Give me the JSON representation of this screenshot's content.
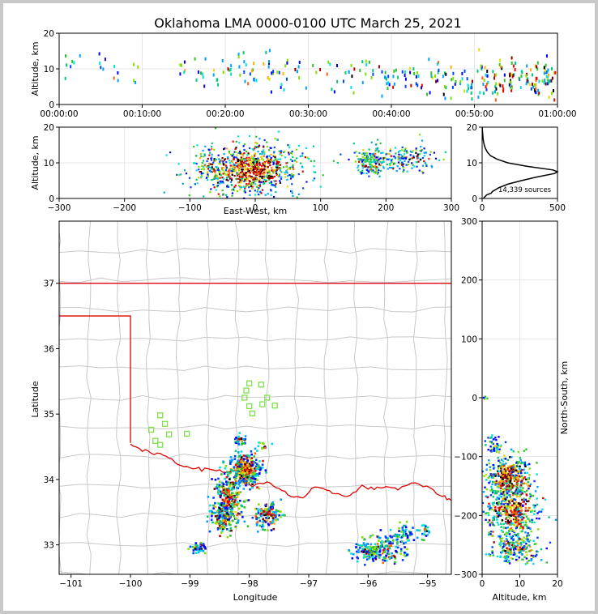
{
  "chart_data": [
    {
      "id": "time_height",
      "type": "scatter",
      "title": "Oklahoma LMA 0000-0100 UTC March 25, 2021",
      "ylabel": "Altitude, km",
      "xlim": [
        "00:00:00",
        "01:00:00"
      ],
      "ylim": [
        0,
        20
      ],
      "xticks": [
        "00:00:00",
        "00:10:00",
        "00:20:00",
        "00:30:00",
        "00:40:00",
        "00:50:00",
        "01:00:00"
      ],
      "yticks": [
        "0",
        "10",
        "20"
      ],
      "grid": true,
      "activity_minutes": [
        {
          "t": 0.5,
          "alt": 10,
          "n": 3
        },
        {
          "t": 2,
          "alt": 11,
          "n": 4
        },
        {
          "t": 5,
          "alt": 11,
          "n": 5
        },
        {
          "t": 7,
          "alt": 10,
          "n": 4
        },
        {
          "t": 9,
          "alt": 11,
          "n": 4
        },
        {
          "t": 15,
          "alt": 10,
          "n": 6
        },
        {
          "t": 17,
          "alt": 9,
          "n": 8
        },
        {
          "t": 19,
          "alt": 9,
          "n": 7
        },
        {
          "t": 21,
          "alt": 10,
          "n": 9
        },
        {
          "t": 23,
          "alt": 9,
          "n": 14
        },
        {
          "t": 25,
          "alt": 9,
          "n": 12
        },
        {
          "t": 27,
          "alt": 8,
          "n": 10
        },
        {
          "t": 29,
          "alt": 9,
          "n": 6
        },
        {
          "t": 31,
          "alt": 10,
          "n": 3
        },
        {
          "t": 33,
          "alt": 8,
          "n": 7
        },
        {
          "t": 35,
          "alt": 8,
          "n": 9
        },
        {
          "t": 37,
          "alt": 9,
          "n": 10
        },
        {
          "t": 39,
          "alt": 8,
          "n": 12
        },
        {
          "t": 41,
          "alt": 8,
          "n": 11
        },
        {
          "t": 43,
          "alt": 8,
          "n": 12
        },
        {
          "t": 45,
          "alt": 8,
          "n": 13
        },
        {
          "t": 47,
          "alt": 7,
          "n": 15
        },
        {
          "t": 49,
          "alt": 7,
          "n": 17
        },
        {
          "t": 51,
          "alt": 7,
          "n": 20
        },
        {
          "t": 53,
          "alt": 7,
          "n": 22
        },
        {
          "t": 55,
          "alt": 7,
          "n": 26
        },
        {
          "t": 57,
          "alt": 7,
          "n": 30
        },
        {
          "t": 59,
          "alt": 7,
          "n": 30
        }
      ]
    },
    {
      "id": "east_west_altitude",
      "type": "scatter",
      "xlabel": "East-West, km",
      "ylabel": "Altitude, km",
      "xlim": [
        -300,
        300
      ],
      "ylim": [
        0,
        20
      ],
      "xticks": [
        "−300",
        "−200",
        "−100",
        "0",
        "100",
        "200",
        "300"
      ],
      "yticks": [
        "0",
        "10",
        "20"
      ],
      "grid": true,
      "clusters": [
        {
          "x": -10,
          "y": 8,
          "sx": 40,
          "sy": 3.5,
          "n": 900,
          "hot": 1.0
        },
        {
          "x": 175,
          "y": 10.5,
          "sx": 12,
          "sy": 2,
          "n": 160,
          "hot": 0.4
        },
        {
          "x": 230,
          "y": 11,
          "sx": 25,
          "sy": 1.8,
          "n": 160,
          "hot": 0.4
        }
      ]
    },
    {
      "id": "altitude_histogram",
      "type": "line",
      "xlim": [
        0,
        500
      ],
      "ylim": [
        0,
        20
      ],
      "xticks": [
        "0",
        "500"
      ],
      "yticks": [
        "0",
        "10",
        "20"
      ],
      "annotation": "14,339 sources",
      "profile": [
        {
          "alt": 0,
          "count": 8
        },
        {
          "alt": 1,
          "count": 30
        },
        {
          "alt": 1.5,
          "count": 60
        },
        {
          "alt": 2,
          "count": 70
        },
        {
          "alt": 3,
          "count": 110
        },
        {
          "alt": 4,
          "count": 170
        },
        {
          "alt": 5,
          "count": 260
        },
        {
          "alt": 6,
          "count": 360
        },
        {
          "alt": 7,
          "count": 480
        },
        {
          "alt": 7.5,
          "count": 515
        },
        {
          "alt": 8,
          "count": 470
        },
        {
          "alt": 9,
          "count": 300
        },
        {
          "alt": 10,
          "count": 170
        },
        {
          "alt": 11,
          "count": 100
        },
        {
          "alt": 12,
          "count": 55
        },
        {
          "alt": 13,
          "count": 35
        },
        {
          "alt": 14,
          "count": 22
        },
        {
          "alt": 15,
          "count": 14
        },
        {
          "alt": 16,
          "count": 9
        },
        {
          "alt": 17,
          "count": 6
        },
        {
          "alt": 18,
          "count": 4
        },
        {
          "alt": 19,
          "count": 2
        },
        {
          "alt": 20,
          "count": 1
        }
      ]
    },
    {
      "id": "plan_view",
      "type": "scatter",
      "xlabel": "Longitude",
      "ylabel": "Latitude",
      "xlim": [
        -101.2,
        -94.6
      ],
      "ylim": [
        32.55,
        37.95
      ],
      "xticks": [
        "−101",
        "−100",
        "−99",
        "−98",
        "−97",
        "−96",
        "−95"
      ],
      "yticks": [
        "33",
        "34",
        "35",
        "36",
        "37"
      ],
      "clusters": [
        {
          "x": -98.05,
          "y": 34.15,
          "sx": 0.12,
          "sy": 0.12,
          "n": 320,
          "hot": 1.0
        },
        {
          "x": -98.35,
          "y": 33.7,
          "sx": 0.12,
          "sy": 0.2,
          "n": 260,
          "hot": 0.8
        },
        {
          "x": -98.45,
          "y": 33.4,
          "sx": 0.1,
          "sy": 0.12,
          "n": 110,
          "hot": 0.5
        },
        {
          "x": -97.7,
          "y": 33.45,
          "sx": 0.12,
          "sy": 0.1,
          "n": 130,
          "hot": 0.7
        },
        {
          "x": -98.15,
          "y": 34.6,
          "sx": 0.05,
          "sy": 0.05,
          "n": 30,
          "hot": 0.6
        },
        {
          "x": -97.75,
          "y": 34.52,
          "sx": 0.05,
          "sy": 0.04,
          "n": 14,
          "hot": 0.3
        },
        {
          "x": -98.85,
          "y": 32.95,
          "sx": 0.08,
          "sy": 0.04,
          "n": 40,
          "hot": 0.3
        },
        {
          "x": -96.0,
          "y": 32.9,
          "sx": 0.15,
          "sy": 0.08,
          "n": 110,
          "hot": 0.3
        },
        {
          "x": -95.65,
          "y": 32.95,
          "sx": 0.15,
          "sy": 0.12,
          "n": 120,
          "hot": 0.3
        },
        {
          "x": -95.4,
          "y": 33.15,
          "sx": 0.08,
          "sy": 0.08,
          "n": 40,
          "hot": 0.2
        },
        {
          "x": -95.05,
          "y": 33.2,
          "sx": 0.06,
          "sy": 0.06,
          "n": 25,
          "hot": 0.2
        }
      ],
      "stations": [
        {
          "lon": -98.0,
          "lat": 35.47
        },
        {
          "lon": -97.8,
          "lat": 35.45
        },
        {
          "lon": -98.05,
          "lat": 35.36
        },
        {
          "lon": -98.08,
          "lat": 35.25
        },
        {
          "lon": -97.7,
          "lat": 35.25
        },
        {
          "lon": -97.78,
          "lat": 35.15
        },
        {
          "lon": -97.57,
          "lat": 35.13
        },
        {
          "lon": -98.0,
          "lat": 35.12
        },
        {
          "lon": -97.95,
          "lat": 35.01
        },
        {
          "lon": -99.5,
          "lat": 34.98
        },
        {
          "lon": -99.42,
          "lat": 34.85
        },
        {
          "lon": -99.65,
          "lat": 34.76
        },
        {
          "lon": -99.35,
          "lat": 34.69
        },
        {
          "lon": -99.58,
          "lat": 34.59
        },
        {
          "lon": -99.5,
          "lat": 34.53
        },
        {
          "lon": -99.05,
          "lat": 34.7
        }
      ],
      "colors": {
        "state_border": "#e00000",
        "county_lines": "#c8c8c8",
        "station": "#7fe04a"
      }
    },
    {
      "id": "altitude_north_south",
      "type": "scatter",
      "xlabel": "Altitude, km",
      "ylabel": "North-South, km",
      "xlim": [
        0,
        20
      ],
      "ylim": [
        -300,
        300
      ],
      "xticks": [
        "0",
        "10",
        "20"
      ],
      "yticks": [
        "−300",
        "−200",
        "−100",
        "0",
        "100",
        "200",
        "300"
      ],
      "clusters": [
        {
          "x": 7,
          "y": -135,
          "sx": 3,
          "sy": 18,
          "n": 380,
          "hot": 1.0
        },
        {
          "x": 8,
          "y": -195,
          "sx": 3.5,
          "sy": 22,
          "n": 420,
          "hot": 0.9
        },
        {
          "x": 3.5,
          "y": -80,
          "sx": 1.2,
          "sy": 7,
          "n": 40,
          "hot": 0.3
        },
        {
          "x": 9,
          "y": -255,
          "sx": 3,
          "sy": 12,
          "n": 200,
          "hot": 0.5
        },
        {
          "x": 0.5,
          "y": 0,
          "sx": 0.4,
          "sy": 2,
          "n": 6,
          "hot": 0.0
        }
      ]
    }
  ]
}
